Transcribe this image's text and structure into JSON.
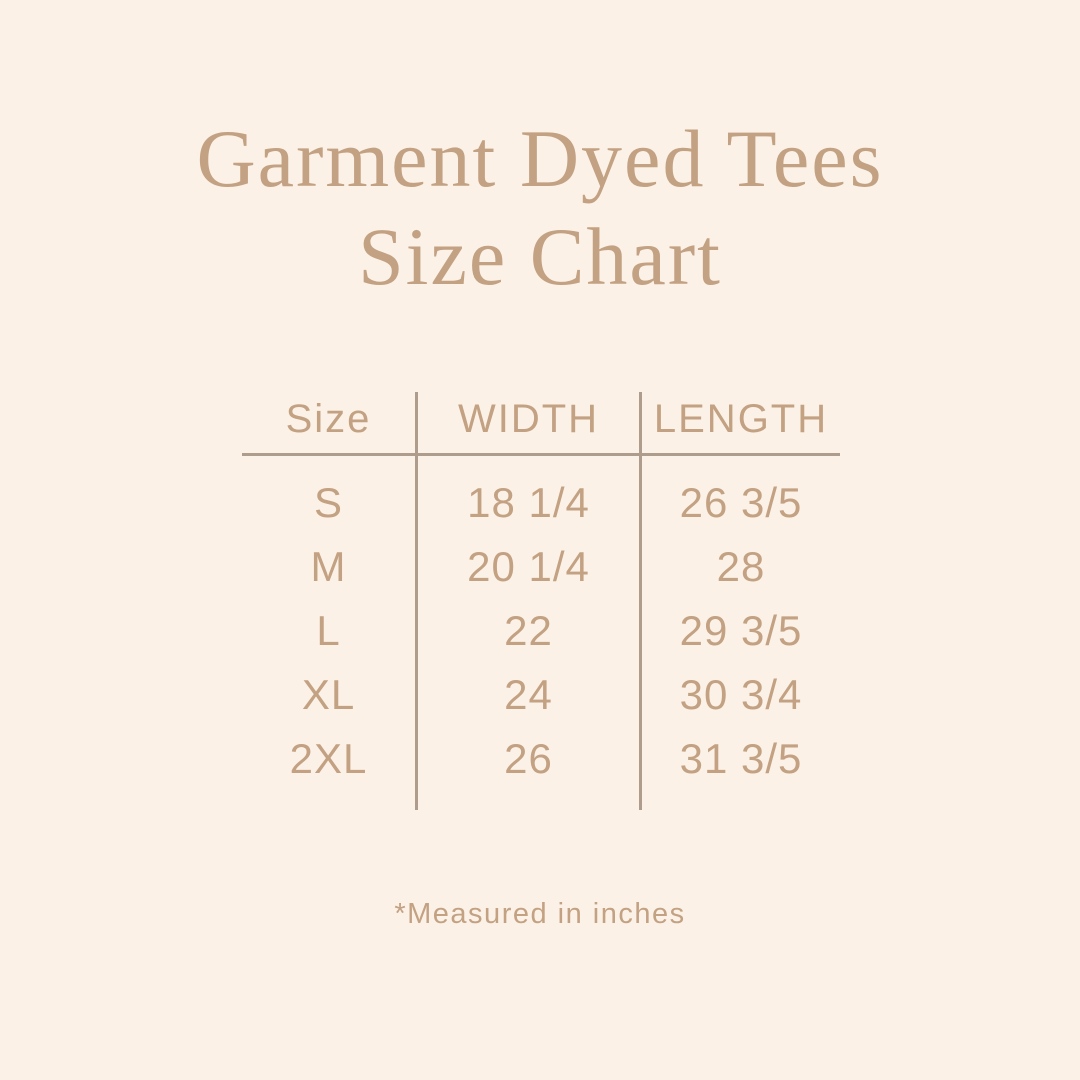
{
  "title": {
    "line1": "Garment Dyed Tees",
    "line2": "Size Chart"
  },
  "table": {
    "headers": [
      "Size",
      "WIDTH",
      "LENGTH"
    ],
    "rows": [
      {
        "size": "S",
        "width": "18 1/4",
        "length": "26 3/5"
      },
      {
        "size": "M",
        "width": "20 1/4",
        "length": "28"
      },
      {
        "size": "L",
        "width": "22",
        "length": "29 3/5"
      },
      {
        "size": "XL",
        "width": "24",
        "length": "30 3/4"
      },
      {
        "size": "2XL",
        "width": "26",
        "length": "31 3/5"
      }
    ]
  },
  "footnote": "*Measured in inches",
  "colors": {
    "background": "#fcf1e6",
    "text": "#c3a183",
    "line": "#ae9c8c"
  }
}
